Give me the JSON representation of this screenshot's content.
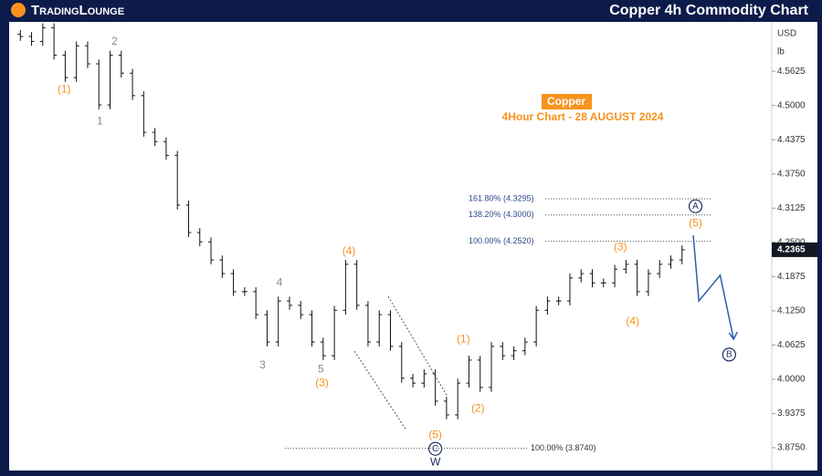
{
  "header": {
    "logo": "TradingLounge",
    "title": "Copper 4h Commodity Chart"
  },
  "chart_data": {
    "type": "ohlc",
    "title": "Copper",
    "subtitle": "4Hour Chart - 28 AUGUST 2024",
    "currency": "USD",
    "unit": "lb",
    "color": "#111111",
    "open": [
      4.63,
      4.626,
      4.617,
      4.642,
      4.592,
      4.551,
      4.609,
      4.576,
      4.501,
      4.592,
      4.559,
      4.518,
      4.451,
      4.434,
      4.409,
      4.318,
      4.268,
      4.251,
      4.218,
      4.193,
      4.16,
      4.16,
      4.118,
      4.068,
      4.143,
      4.135,
      4.118,
      4.068,
      4.043,
      4.126,
      4.21,
      4.135,
      4.068,
      4.118,
      4.06,
      4.002,
      3.993,
      4.01,
      3.96,
      3.935,
      3.993,
      4.035,
      3.985,
      4.06,
      4.043,
      4.052,
      4.068,
      4.126,
      4.143,
      4.143,
      4.185,
      4.193,
      4.176,
      4.176,
      4.201,
      4.21,
      4.16,
      4.193,
      4.21,
      4.218
    ],
    "high": [
      4.638,
      4.634,
      4.65,
      4.65,
      4.6,
      4.617,
      4.617,
      4.584,
      4.6,
      4.6,
      4.567,
      4.526,
      4.459,
      4.442,
      4.417,
      4.326,
      4.276,
      4.259,
      4.226,
      4.201,
      4.168,
      4.168,
      4.126,
      4.151,
      4.151,
      4.143,
      4.126,
      4.076,
      4.134,
      4.218,
      4.218,
      4.143,
      4.126,
      4.126,
      4.068,
      4.01,
      4.018,
      4.018,
      3.968,
      4.001,
      4.043,
      4.043,
      4.068,
      4.068,
      4.06,
      4.076,
      4.134,
      4.151,
      4.151,
      4.193,
      4.201,
      4.201,
      4.184,
      4.209,
      4.218,
      4.218,
      4.201,
      4.218,
      4.226,
      4.2445
    ],
    "low": [
      4.618,
      4.609,
      4.609,
      4.584,
      4.543,
      4.543,
      4.568,
      4.493,
      4.493,
      4.551,
      4.51,
      4.443,
      4.426,
      4.401,
      4.31,
      4.26,
      4.243,
      4.21,
      4.185,
      4.152,
      4.152,
      4.11,
      4.06,
      4.06,
      4.127,
      4.11,
      4.06,
      4.035,
      4.035,
      4.118,
      4.127,
      4.06,
      4.06,
      4.052,
      3.994,
      3.985,
      3.985,
      3.952,
      3.927,
      3.927,
      3.985,
      3.977,
      3.977,
      4.035,
      4.035,
      4.044,
      4.06,
      4.118,
      4.135,
      4.135,
      4.177,
      4.168,
      4.168,
      4.168,
      4.193,
      4.152,
      4.152,
      4.185,
      4.202,
      4.21
    ],
    "close": [
      4.626,
      4.617,
      4.642,
      4.592,
      4.551,
      4.609,
      4.576,
      4.501,
      4.592,
      4.559,
      4.518,
      4.451,
      4.434,
      4.409,
      4.318,
      4.268,
      4.251,
      4.218,
      4.193,
      4.16,
      4.16,
      4.118,
      4.068,
      4.143,
      4.135,
      4.118,
      4.068,
      4.043,
      4.126,
      4.21,
      4.135,
      4.068,
      4.118,
      4.06,
      4.002,
      3.993,
      4.01,
      3.96,
      3.935,
      3.993,
      4.035,
      3.985,
      4.06,
      4.043,
      4.052,
      4.068,
      4.126,
      4.143,
      4.143,
      4.185,
      4.193,
      4.176,
      4.176,
      4.201,
      4.21,
      4.16,
      4.193,
      4.21,
      4.218,
      4.2365
    ],
    "last_price": 4.2365,
    "ylim": [
      3.835,
      4.646
    ],
    "yticks": [
      {
        "value": 4.5625,
        "label": "4.5625"
      },
      {
        "value": 4.5,
        "label": "4.5000"
      },
      {
        "value": 4.4375,
        "label": "4.4375"
      },
      {
        "value": 4.375,
        "label": "4.3750"
      },
      {
        "value": 4.3125,
        "label": "4.3125"
      },
      {
        "value": 4.25,
        "label": "4.2500"
      },
      {
        "value": 4.1875,
        "label": "4.1875"
      },
      {
        "value": 4.125,
        "label": "4.1250"
      },
      {
        "value": 4.0625,
        "label": "4.0625"
      },
      {
        "value": 4.0,
        "label": "4.0000"
      },
      {
        "value": 3.9375,
        "label": "3.9375"
      },
      {
        "value": 3.875,
        "label": "3.8750"
      }
    ],
    "levels": [
      {
        "label": "161.80% (4.3295)",
        "value": 4.3295,
        "label_side": "left"
      },
      {
        "label": "138.20% (4.3000)",
        "value": 4.3,
        "label_side": "left"
      },
      {
        "label": "100.00% (4.2520)",
        "value": 4.252,
        "label_side": "left"
      },
      {
        "label": "100.00% (3.8740)",
        "value": 3.874,
        "label_side": "right"
      }
    ],
    "projection": {
      "color": "#2d5fa8",
      "x": [
        60,
        60.5,
        62.4,
        63.6
      ],
      "y": [
        4.263,
        4.143,
        4.19,
        4.073
      ]
    },
    "annotations": [
      {
        "text": "(1)",
        "x": 3.9,
        "y": 4.529,
        "color": "#f7931e"
      },
      {
        "text": "1",
        "x": 7.1,
        "y": 4.471,
        "color": "#8a8a8a"
      },
      {
        "text": "2",
        "x": 8.4,
        "y": 4.616,
        "color": "#8a8a8a"
      },
      {
        "text": "3",
        "x": 21.6,
        "y": 4.025,
        "color": "#8a8a8a"
      },
      {
        "text": "4",
        "x": 23.1,
        "y": 4.176,
        "color": "#8a8a8a"
      },
      {
        "text": "5",
        "x": 26.8,
        "y": 4.018,
        "color": "#8a8a8a"
      },
      {
        "text": "(3)",
        "x": 26.9,
        "y": 3.993,
        "color": "#f7931e"
      },
      {
        "text": "(4)",
        "x": 29.3,
        "y": 4.233,
        "color": "#f7931e"
      },
      {
        "text": "(5)",
        "x": 37.0,
        "y": 3.898,
        "color": "#f7931e"
      },
      {
        "text": "C",
        "x": 37.0,
        "y": 3.873,
        "color": "#1e2a5e",
        "circle": true
      },
      {
        "text": "W",
        "x": 37.0,
        "y": 3.848,
        "color": "#1e2a5e"
      },
      {
        "text": "(1)",
        "x": 39.5,
        "y": 4.073,
        "color": "#f7931e"
      },
      {
        "text": "(2)",
        "x": 40.8,
        "y": 3.946,
        "color": "#f7931e"
      },
      {
        "text": "(3)",
        "x": 53.5,
        "y": 4.241,
        "color": "#f7931e"
      },
      {
        "text": "(4)",
        "x": 54.6,
        "y": 4.105,
        "color": "#f7931e"
      },
      {
        "text": "(5)",
        "x": 60.2,
        "y": 4.284,
        "color": "#f7931e"
      },
      {
        "text": "A",
        "x": 60.2,
        "y": 4.316,
        "color": "#1e2a5e",
        "circle": true
      },
      {
        "text": "B",
        "x": 63.2,
        "y": 4.045,
        "color": "#1e2a5e",
        "circle": true
      }
    ]
  }
}
